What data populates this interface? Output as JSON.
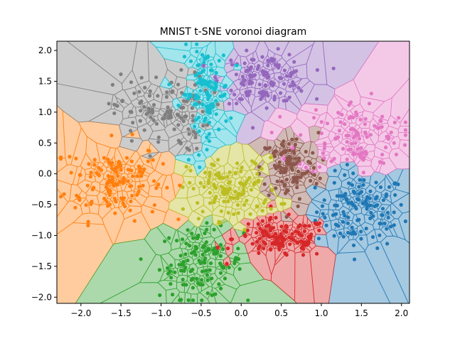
{
  "chart_data": {
    "type": "scatter",
    "title": "MNIST t-SNE voronoi diagram",
    "xlabel": "",
    "ylabel": "",
    "xlim": [
      -2.3,
      2.1
    ],
    "ylim": [
      -2.1,
      2.15
    ],
    "x_ticks": [
      -2.0,
      -1.5,
      -1.0,
      -0.5,
      0.0,
      0.5,
      1.0,
      1.5,
      2.0
    ],
    "y_ticks": [
      -2.0,
      -1.5,
      -1.0,
      -0.5,
      0.0,
      0.5,
      1.0,
      1.5,
      2.0
    ],
    "x_tick_labels": [
      "−2.0",
      "−1.5",
      "−1.0",
      "−0.5",
      "0.0",
      "0.5",
      "1.0",
      "1.5",
      "2.0"
    ],
    "y_tick_labels": [
      "−2.0",
      "−1.5",
      "−1.0",
      "−0.5",
      "0.0",
      "0.5",
      "1.0",
      "1.5",
      "2.0"
    ],
    "grid": false,
    "legend": "none",
    "series": [
      {
        "color": "#1f77b4",
        "center": [
          1.5,
          -0.6
        ],
        "spread": [
          0.28,
          0.3
        ],
        "count": 110
      },
      {
        "color": "#ff7f0e",
        "center": [
          -1.6,
          -0.1
        ],
        "spread": [
          0.3,
          0.32
        ],
        "count": 120
      },
      {
        "color": "#2ca02c",
        "center": [
          -0.5,
          -1.45
        ],
        "spread": [
          0.26,
          0.28
        ],
        "count": 110
      },
      {
        "color": "#d62728",
        "center": [
          0.5,
          -1.05
        ],
        "spread": [
          0.3,
          0.16
        ],
        "count": 110
      },
      {
        "color": "#9467bd",
        "center": [
          0.3,
          1.55
        ],
        "spread": [
          0.27,
          0.2
        ],
        "count": 110
      },
      {
        "color": "#8c564b",
        "center": [
          0.6,
          0.1
        ],
        "spread": [
          0.18,
          0.28
        ],
        "count": 100
      },
      {
        "color": "#e377c2",
        "center": [
          1.4,
          0.6
        ],
        "spread": [
          0.35,
          0.3
        ],
        "count": 100
      },
      {
        "color": "#7f7f7f",
        "center": [
          -1.0,
          1.0
        ],
        "spread": [
          0.3,
          0.32
        ],
        "count": 100
      },
      {
        "color": "#bcbd22",
        "center": [
          -0.1,
          -0.25
        ],
        "spread": [
          0.28,
          0.25
        ],
        "count": 100
      },
      {
        "color": "#17becf",
        "center": [
          -0.45,
          1.3
        ],
        "spread": [
          0.15,
          0.38
        ],
        "count": 100
      }
    ]
  }
}
